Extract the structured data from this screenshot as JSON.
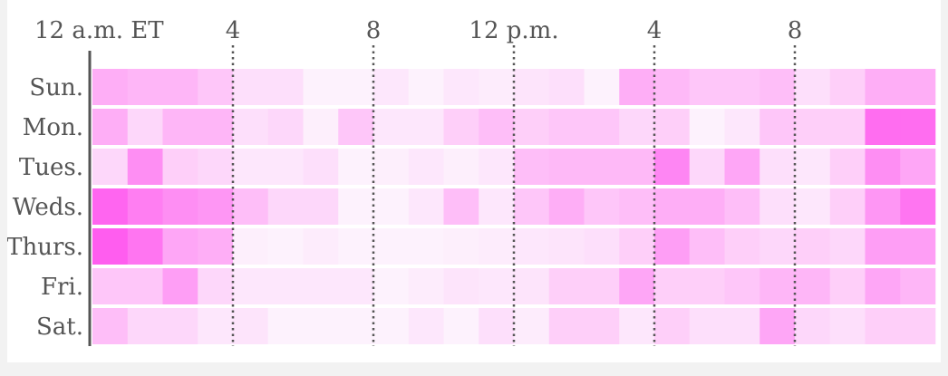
{
  "chart_data": {
    "type": "heatmap",
    "x_tick_labels": [
      {
        "hour": 0,
        "label": "12 a.m. ET"
      },
      {
        "hour": 4,
        "label": "4"
      },
      {
        "hour": 8,
        "label": "8"
      },
      {
        "hour": 12,
        "label": "12 p.m."
      },
      {
        "hour": 16,
        "label": "4"
      },
      {
        "hour": 20,
        "label": "8"
      }
    ],
    "hours": [
      0,
      1,
      2,
      3,
      4,
      5,
      6,
      7,
      8,
      9,
      10,
      11,
      12,
      13,
      14,
      15,
      16,
      17,
      18,
      19,
      20,
      21,
      22,
      23
    ],
    "rows": [
      {
        "label": "Sun.",
        "values": [
          0.45,
          0.4,
          0.4,
          0.3,
          0.15,
          0.15,
          0.03,
          0.03,
          0.1,
          0.03,
          0.1,
          0.07,
          0.12,
          0.15,
          0.03,
          0.45,
          0.38,
          0.3,
          0.3,
          0.35,
          0.15,
          0.25,
          0.45,
          0.45
        ]
      },
      {
        "label": "Mon.",
        "values": [
          0.45,
          0.2,
          0.4,
          0.4,
          0.15,
          0.2,
          0.05,
          0.3,
          0.1,
          0.1,
          0.25,
          0.35,
          0.25,
          0.3,
          0.3,
          0.2,
          0.25,
          0.03,
          0.1,
          0.3,
          0.25,
          0.25,
          0.85,
          0.85
        ]
      },
      {
        "label": "Tues.",
        "values": [
          0.2,
          0.65,
          0.25,
          0.2,
          0.1,
          0.1,
          0.15,
          0.03,
          0.05,
          0.1,
          0.05,
          0.1,
          0.35,
          0.38,
          0.38,
          0.38,
          0.7,
          0.2,
          0.5,
          0.15,
          0.1,
          0.25,
          0.65,
          0.5
        ]
      },
      {
        "label": "Weds.",
        "values": [
          0.9,
          0.75,
          0.65,
          0.6,
          0.35,
          0.2,
          0.2,
          0.03,
          0.03,
          0.1,
          0.35,
          0.1,
          0.3,
          0.45,
          0.3,
          0.35,
          0.45,
          0.45,
          0.35,
          0.15,
          0.1,
          0.25,
          0.6,
          0.8
        ]
      },
      {
        "label": "Thurs.",
        "values": [
          0.95,
          0.8,
          0.5,
          0.45,
          0.05,
          0.03,
          0.07,
          0.03,
          0.03,
          0.03,
          0.05,
          0.07,
          0.1,
          0.12,
          0.15,
          0.25,
          0.55,
          0.35,
          0.25,
          0.2,
          0.25,
          0.2,
          0.55,
          0.55
        ]
      },
      {
        "label": "Fri.",
        "values": [
          0.3,
          0.3,
          0.55,
          0.2,
          0.1,
          0.1,
          0.1,
          0.1,
          0.03,
          0.07,
          0.12,
          0.1,
          0.12,
          0.25,
          0.25,
          0.5,
          0.25,
          0.25,
          0.3,
          0.4,
          0.4,
          0.25,
          0.5,
          0.4
        ]
      },
      {
        "label": "Sat.",
        "values": [
          0.35,
          0.2,
          0.2,
          0.1,
          0.12,
          0.03,
          0.03,
          0.03,
          0.03,
          0.1,
          0.03,
          0.15,
          0.07,
          0.25,
          0.25,
          0.1,
          0.25,
          0.15,
          0.15,
          0.5,
          0.2,
          0.15,
          0.25,
          0.25
        ]
      }
    ],
    "color_low": "#fdf7fd",
    "color_high": "#ff55ee",
    "hour_dividers": [
      4,
      8,
      12,
      16,
      20
    ]
  }
}
